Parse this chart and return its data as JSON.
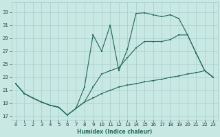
{
  "bg_color": "#c8e8e4",
  "grid_color": "#a8cccc",
  "line_color": "#2a6b60",
  "xlabel": "Humidex (Indice chaleur)",
  "xlim": [
    -0.5,
    23.5
  ],
  "ylim": [
    16.5,
    34.5
  ],
  "yticks": [
    17,
    19,
    21,
    23,
    25,
    27,
    29,
    31,
    33
  ],
  "xticks": [
    0,
    1,
    2,
    3,
    4,
    5,
    6,
    7,
    8,
    9,
    10,
    11,
    12,
    13,
    14,
    15,
    16,
    17,
    18,
    19,
    20,
    21,
    22,
    23
  ],
  "series_low": [
    22.0,
    20.5,
    19.8,
    19.2,
    18.7,
    18.4,
    17.2,
    18.2,
    19.2,
    19.8,
    20.5,
    21.0,
    21.5,
    21.8,
    22.0,
    22.3,
    22.5,
    22.7,
    23.0,
    23.2,
    23.5,
    23.7,
    24.0,
    23.0
  ],
  "series_mid": [
    22.0,
    20.5,
    19.8,
    19.2,
    18.7,
    18.4,
    17.2,
    18.2,
    19.2,
    21.5,
    23.5,
    24.0,
    24.5,
    26.0,
    27.5,
    28.5,
    28.5,
    28.5,
    28.8,
    29.5,
    29.5,
    26.7,
    24.0,
    23.0
  ],
  "series_high": [
    22.0,
    20.5,
    19.8,
    19.2,
    18.7,
    18.4,
    17.2,
    18.2,
    21.5,
    29.5,
    27.0,
    31.0,
    24.0,
    27.3,
    32.8,
    32.9,
    32.6,
    32.3,
    32.6,
    32.0,
    29.5,
    26.7,
    24.0,
    23.0
  ]
}
